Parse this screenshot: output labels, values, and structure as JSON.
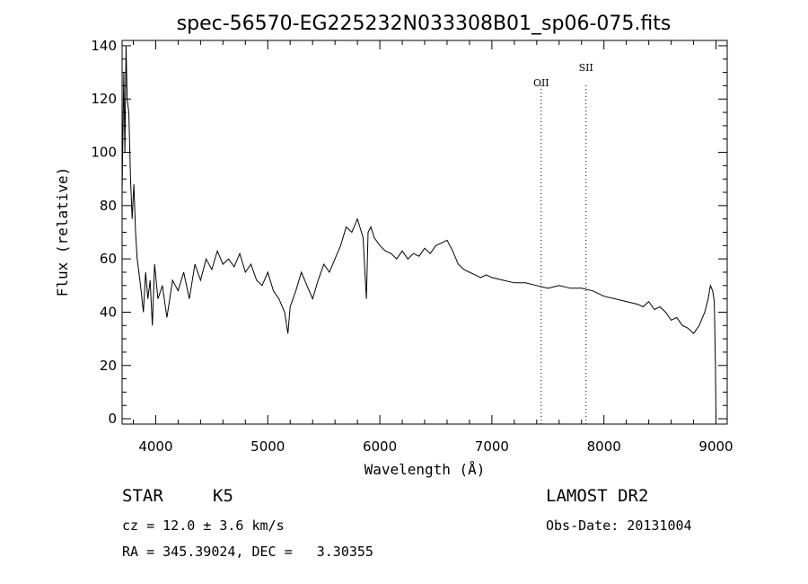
{
  "chart_data": {
    "type": "line",
    "title": "spec-56570-EG225232N033308B01_sp06-075.fits",
    "xlabel": "Wavelength (Å)",
    "ylabel": "Flux (relative)",
    "xlim": [
      3700,
      9100
    ],
    "ylim": [
      -2,
      142
    ],
    "xticks": [
      4000,
      5000,
      6000,
      7000,
      8000,
      9000
    ],
    "yticks": [
      0,
      20,
      40,
      60,
      80,
      100,
      120,
      140
    ],
    "grid": false,
    "lines": [
      {
        "label": "OII",
        "x": 7440
      },
      {
        "label": "SII",
        "x": 7840
      }
    ],
    "series": [
      {
        "x": [
          3700,
          3715,
          3725,
          3735,
          3745,
          3760,
          3775,
          3790,
          3805,
          3820,
          3835,
          3850,
          3870,
          3890,
          3910,
          3930,
          3950,
          3970,
          3990,
          4020,
          4060,
          4100,
          4150,
          4200,
          4250,
          4300,
          4350,
          4400,
          4450,
          4500,
          4550,
          4600,
          4650,
          4700,
          4750,
          4800,
          4850,
          4900,
          4950,
          5000,
          5050,
          5100,
          5150,
          5180,
          5200,
          5250,
          5300,
          5350,
          5400,
          5450,
          5500,
          5550,
          5600,
          5650,
          5700,
          5750,
          5800,
          5850,
          5880,
          5895,
          5920,
          5950,
          6000,
          6050,
          6100,
          6150,
          6200,
          6250,
          6300,
          6350,
          6400,
          6450,
          6500,
          6550,
          6600,
          6650,
          6700,
          6750,
          6800,
          6850,
          6900,
          6950,
          7000,
          7100,
          7200,
          7300,
          7400,
          7500,
          7600,
          7700,
          7800,
          7900,
          8000,
          8100,
          8200,
          8300,
          8350,
          8400,
          8450,
          8500,
          8550,
          8600,
          8650,
          8700,
          8750,
          8800,
          8850,
          8900,
          8930,
          8950,
          8970,
          8985,
          8995,
          9000
        ],
        "values": [
          85,
          130,
          100,
          140,
          120,
          115,
          90,
          75,
          88,
          70,
          60,
          55,
          48,
          40,
          55,
          45,
          52,
          35,
          58,
          45,
          50,
          38,
          52,
          48,
          55,
          45,
          58,
          52,
          60,
          56,
          63,
          58,
          60,
          57,
          62,
          55,
          58,
          52,
          50,
          55,
          48,
          45,
          40,
          32,
          42,
          48,
          55,
          50,
          45,
          52,
          58,
          55,
          60,
          65,
          72,
          70,
          75,
          68,
          45,
          70,
          72,
          68,
          65,
          63,
          62,
          60,
          63,
          60,
          62,
          61,
          64,
          62,
          65,
          66,
          67,
          63,
          58,
          56,
          55,
          54,
          53,
          54,
          53,
          52,
          51,
          51,
          50,
          49,
          50,
          49,
          49,
          48,
          46,
          45,
          44,
          43,
          42,
          44,
          41,
          42,
          40,
          37,
          38,
          35,
          34,
          32,
          35,
          40,
          45,
          50,
          48,
          44,
          20,
          0
        ]
      }
    ]
  },
  "info": {
    "object_class": "STAR",
    "subclass": "K5",
    "survey": "LAMOST DR2",
    "cz": "cz = 12.0 ± 3.6 km/s",
    "obs_date": "Obs-Date: 20131004",
    "coords": "RA = 345.39024, DEC =   3.30355"
  }
}
